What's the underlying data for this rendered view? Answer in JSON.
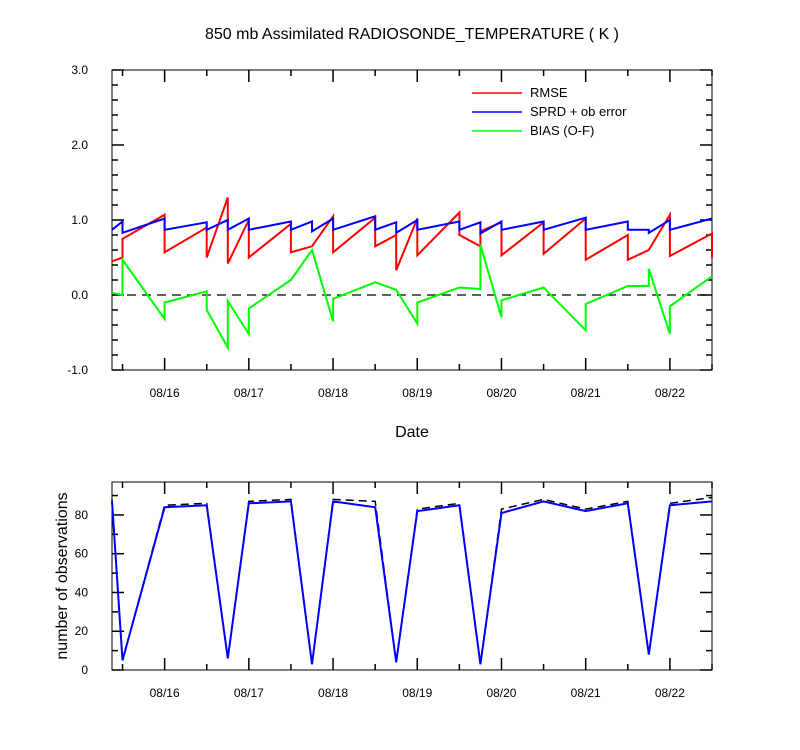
{
  "title": "850 mb Assimilated RADIOSONDE_TEMPERATURE ( K )",
  "chart_data": [
    {
      "type": "line",
      "title": "850 mb Assimilated RADIOSONDE_TEMPERATURE ( K )",
      "xlabel": "Date",
      "ylabel": "",
      "x_tick_labels": [
        "08/16",
        "08/17",
        "08/18",
        "08/19",
        "08/20",
        "08/21",
        "08/22"
      ],
      "y_tick_labels": [
        "-1.0",
        "0.0",
        "1.0",
        "2.0",
        "3.0"
      ],
      "xlim": [
        "08/15 09:00",
        "08/22 12:00"
      ],
      "ylim": [
        -1.0,
        3.0
      ],
      "grid": false,
      "legend_position": "top-right",
      "reference_line": {
        "y": 0.0,
        "style": "dashed"
      },
      "series": [
        {
          "name": "RMSE",
          "color": "#ff0000",
          "points": [
            [
              "08/15 09:00",
              0.45
            ],
            [
              "08/15 12:00",
              0.5
            ],
            [
              "08/15 12:00",
              0.75
            ],
            [
              "08/16 00:00",
              1.07
            ],
            [
              "08/16 00:00",
              0.57
            ],
            [
              "08/16 12:00",
              0.9
            ],
            [
              "08/16 12:00",
              0.5
            ],
            [
              "08/16 18:00",
              1.3
            ],
            [
              "08/16 18:00",
              0.42
            ],
            [
              "08/17 00:00",
              1.0
            ],
            [
              "08/17 00:00",
              0.5
            ],
            [
              "08/17 12:00",
              0.95
            ],
            [
              "08/17 12:00",
              0.57
            ],
            [
              "08/17 18:00",
              0.65
            ],
            [
              "08/18 00:00",
              1.05
            ],
            [
              "08/18 00:00",
              0.57
            ],
            [
              "08/18 12:00",
              1.03
            ],
            [
              "08/18 12:00",
              0.65
            ],
            [
              "08/18 18:00",
              0.8
            ],
            [
              "08/18 18:00",
              0.33
            ],
            [
              "08/19 00:00",
              1.02
            ],
            [
              "08/19 00:00",
              0.53
            ],
            [
              "08/19 12:00",
              1.1
            ],
            [
              "08/19 12:00",
              0.8
            ],
            [
              "08/19 18:00",
              0.65
            ],
            [
              "08/19 18:00",
              0.85
            ],
            [
              "08/20 00:00",
              0.97
            ],
            [
              "08/20 00:00",
              0.53
            ],
            [
              "08/20 12:00",
              0.97
            ],
            [
              "08/20 12:00",
              0.55
            ],
            [
              "08/21 00:00",
              1.02
            ],
            [
              "08/21 00:00",
              0.47
            ],
            [
              "08/21 12:00",
              0.8
            ],
            [
              "08/21 12:00",
              0.47
            ],
            [
              "08/21 18:00",
              0.6
            ],
            [
              "08/22 00:00",
              1.07
            ],
            [
              "08/22 00:00",
              0.52
            ],
            [
              "08/22 12:00",
              0.82
            ],
            [
              "08/22 12:00",
              0.5
            ]
          ]
        },
        {
          "name": "SPRD + ob error",
          "color": "#0000ff",
          "points": [
            [
              "08/15 09:00",
              0.87
            ],
            [
              "08/15 12:00",
              0.98
            ],
            [
              "08/15 12:00",
              0.83
            ],
            [
              "08/16 00:00",
              1.02
            ],
            [
              "08/16 00:00",
              0.87
            ],
            [
              "08/16 12:00",
              0.97
            ],
            [
              "08/16 12:00",
              0.87
            ],
            [
              "08/16 18:00",
              1.0
            ],
            [
              "08/16 18:00",
              0.87
            ],
            [
              "08/17 00:00",
              1.02
            ],
            [
              "08/17 00:00",
              0.87
            ],
            [
              "08/17 12:00",
              0.98
            ],
            [
              "08/17 12:00",
              0.87
            ],
            [
              "08/17 18:00",
              0.98
            ],
            [
              "08/17 18:00",
              0.85
            ],
            [
              "08/18 00:00",
              1.02
            ],
            [
              "08/18 00:00",
              0.87
            ],
            [
              "08/18 12:00",
              1.05
            ],
            [
              "08/18 12:00",
              0.87
            ],
            [
              "08/18 18:00",
              0.97
            ],
            [
              "08/18 18:00",
              0.83
            ],
            [
              "08/19 00:00",
              1.0
            ],
            [
              "08/19 00:00",
              0.87
            ],
            [
              "08/19 12:00",
              0.98
            ],
            [
              "08/19 12:00",
              0.87
            ],
            [
              "08/19 18:00",
              0.97
            ],
            [
              "08/19 18:00",
              0.82
            ],
            [
              "08/20 00:00",
              0.98
            ],
            [
              "08/20 00:00",
              0.87
            ],
            [
              "08/20 12:00",
              0.98
            ],
            [
              "08/20 12:00",
              0.87
            ],
            [
              "08/21 00:00",
              1.03
            ],
            [
              "08/21 00:00",
              0.87
            ],
            [
              "08/21 12:00",
              0.98
            ],
            [
              "08/21 12:00",
              0.87
            ],
            [
              "08/21 18:00",
              0.87
            ],
            [
              "08/21 18:00",
              0.83
            ],
            [
              "08/22 00:00",
              1.0
            ],
            [
              "08/22 00:00",
              0.87
            ],
            [
              "08/22 12:00",
              1.02
            ]
          ]
        },
        {
          "name": "BIAS (O-F)",
          "color": "#00ff00",
          "points": [
            [
              "08/15 09:00",
              0.03
            ],
            [
              "08/15 12:00",
              0.0
            ],
            [
              "08/15 12:00",
              0.47
            ],
            [
              "08/16 00:00",
              -0.32
            ],
            [
              "08/16 00:00",
              -0.1
            ],
            [
              "08/16 12:00",
              0.05
            ],
            [
              "08/16 12:00",
              -0.2
            ],
            [
              "08/16 18:00",
              -0.7
            ],
            [
              "08/16 18:00",
              -0.08
            ],
            [
              "08/17 00:00",
              -0.52
            ],
            [
              "08/17 00:00",
              -0.18
            ],
            [
              "08/17 12:00",
              0.2
            ],
            [
              "08/17 18:00",
              0.6
            ],
            [
              "08/18 00:00",
              -0.35
            ],
            [
              "08/18 00:00",
              -0.05
            ],
            [
              "08/18 12:00",
              0.17
            ],
            [
              "08/18 18:00",
              0.07
            ],
            [
              "08/19 00:00",
              -0.38
            ],
            [
              "08/19 00:00",
              -0.1
            ],
            [
              "08/19 12:00",
              0.1
            ],
            [
              "08/19 18:00",
              0.08
            ],
            [
              "08/19 18:00",
              0.67
            ],
            [
              "08/20 00:00",
              -0.3
            ],
            [
              "08/20 00:00",
              -0.07
            ],
            [
              "08/20 12:00",
              0.1
            ],
            [
              "08/21 00:00",
              -0.47
            ],
            [
              "08/21 00:00",
              -0.12
            ],
            [
              "08/21 12:00",
              0.12
            ],
            [
              "08/21 18:00",
              0.12
            ],
            [
              "08/21 18:00",
              0.35
            ],
            [
              "08/22 00:00",
              -0.52
            ],
            [
              "08/22 00:00",
              -0.15
            ],
            [
              "08/22 12:00",
              0.25
            ]
          ]
        }
      ]
    },
    {
      "type": "line",
      "title": "",
      "xlabel": "",
      "ylabel": "number of observations",
      "x_tick_labels": [
        "08/16",
        "08/17",
        "08/18",
        "08/19",
        "08/20",
        "08/21",
        "08/22"
      ],
      "y_tick_labels": [
        "0",
        "20",
        "40",
        "60",
        "80"
      ],
      "xlim": [
        "08/15 09:00",
        "08/22 12:00"
      ],
      "ylim": [
        0,
        97
      ],
      "grid": false,
      "series": [
        {
          "style": "dashed",
          "color": "#000000",
          "points": [
            [
              "08/15 09:00",
              88
            ],
            [
              "08/15 12:00",
              5
            ],
            [
              "08/16 00:00",
              85
            ],
            [
              "08/16 12:00",
              86
            ],
            [
              "08/16 18:00",
              6
            ],
            [
              "08/17 00:00",
              87
            ],
            [
              "08/17 12:00",
              88
            ],
            [
              "08/17 18:00",
              3
            ],
            [
              "08/18 00:00",
              88
            ],
            [
              "08/18 12:00",
              87
            ],
            [
              "08/18 18:00",
              4
            ],
            [
              "08/19 00:00",
              83
            ],
            [
              "08/19 12:00",
              86
            ],
            [
              "08/19 18:00",
              3
            ],
            [
              "08/20 00:00",
              83
            ],
            [
              "08/20 12:00",
              88
            ],
            [
              "08/21 00:00",
              83
            ],
            [
              "08/21 12:00",
              87
            ],
            [
              "08/21 18:00",
              8
            ],
            [
              "08/22 00:00",
              86
            ],
            [
              "08/22 12:00",
              89
            ]
          ]
        },
        {
          "style": "solid",
          "color": "#0000ff",
          "points": [
            [
              "08/15 09:00",
              87
            ],
            [
              "08/15 12:00",
              5
            ],
            [
              "08/16 00:00",
              84
            ],
            [
              "08/16 12:00",
              85
            ],
            [
              "08/16 18:00",
              6
            ],
            [
              "08/17 00:00",
              86
            ],
            [
              "08/17 12:00",
              87
            ],
            [
              "08/17 18:00",
              3
            ],
            [
              "08/18 00:00",
              87
            ],
            [
              "08/18 12:00",
              84
            ],
            [
              "08/18 18:00",
              4
            ],
            [
              "08/19 00:00",
              82
            ],
            [
              "08/19 12:00",
              85
            ],
            [
              "08/19 18:00",
              3
            ],
            [
              "08/20 00:00",
              81
            ],
            [
              "08/20 12:00",
              87
            ],
            [
              "08/21 00:00",
              82
            ],
            [
              "08/21 12:00",
              86
            ],
            [
              "08/21 18:00",
              8
            ],
            [
              "08/22 00:00",
              85
            ],
            [
              "08/22 12:00",
              87
            ]
          ]
        }
      ]
    }
  ]
}
